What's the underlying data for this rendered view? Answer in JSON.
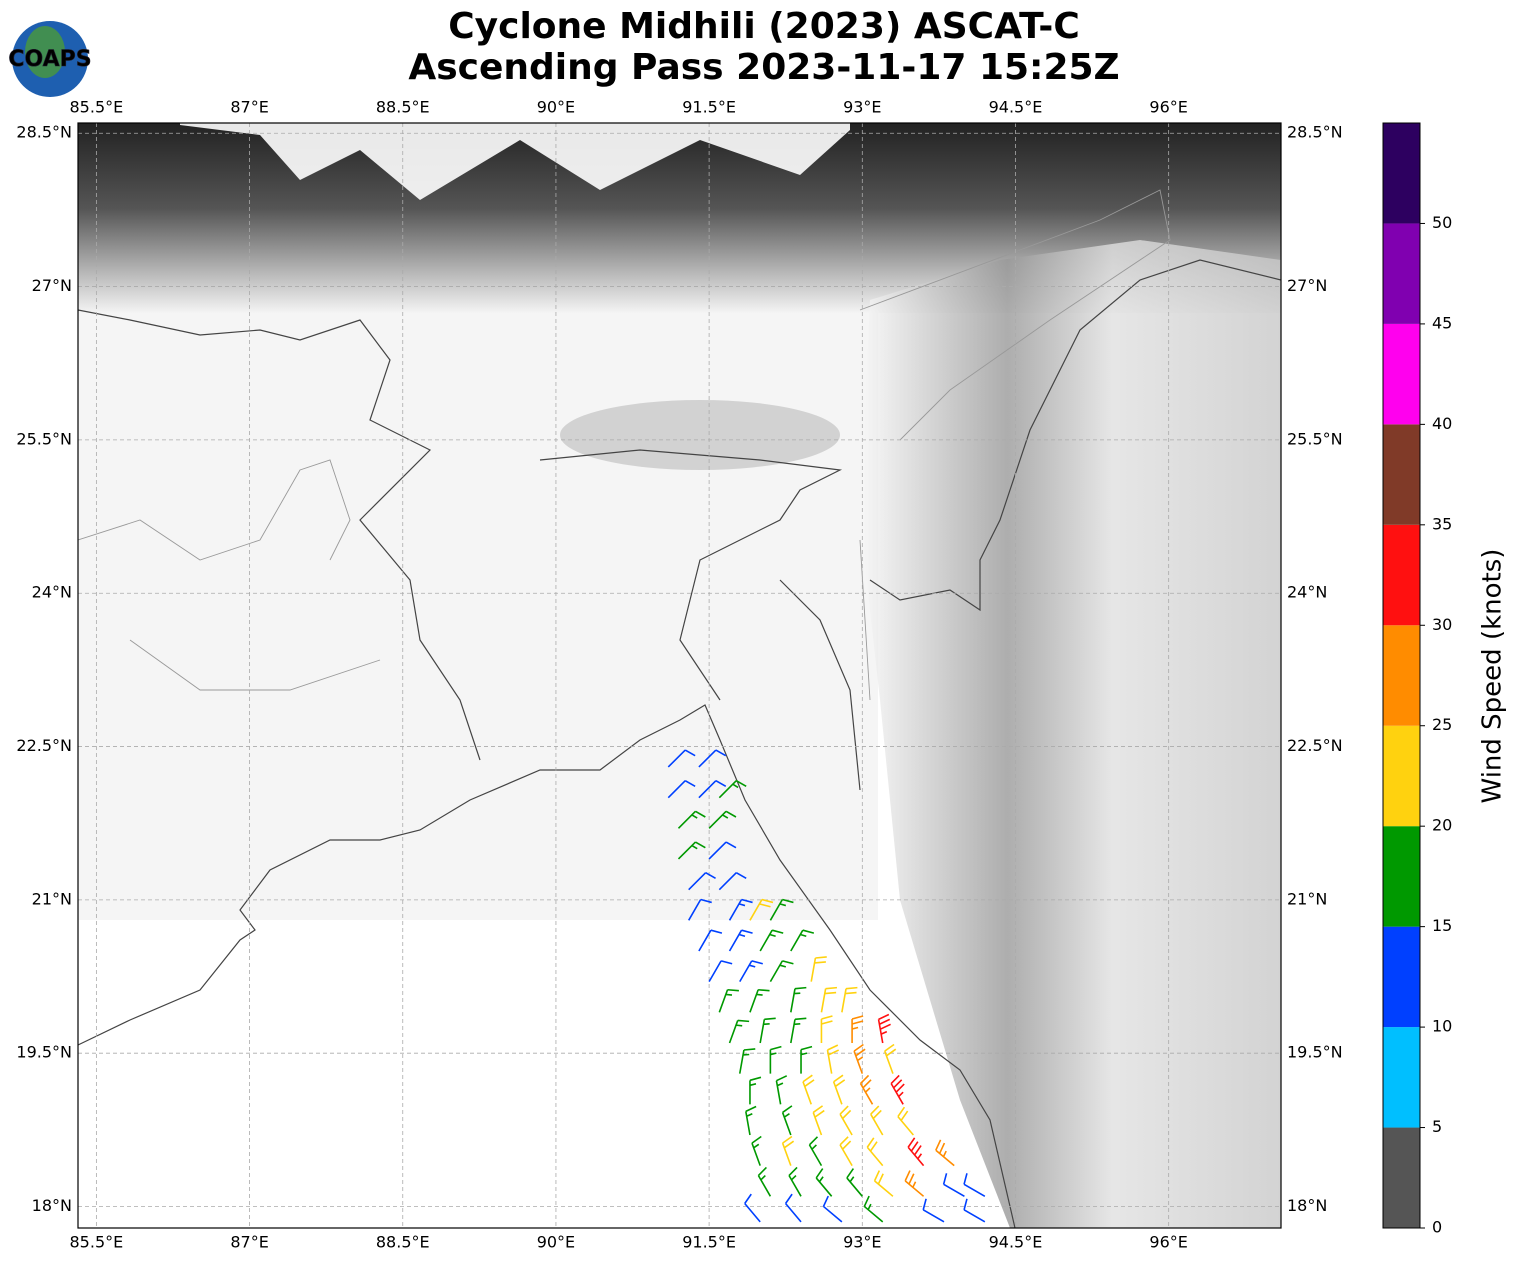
{
  "logo": "COAPS",
  "chart_data": {
    "type": "barbs",
    "title": [
      "Cyclone Midhili (2023) ASCAT-C",
      "Ascending Pass 2023-11-17 15:25Z"
    ],
    "xlim": [
      85.32,
      97.1
    ],
    "ylim": [
      17.79,
      28.6
    ],
    "xticks": [
      {
        "value": 85.5,
        "label": "85.5°E"
      },
      {
        "value": 87,
        "label": "87°E"
      },
      {
        "value": 88.5,
        "label": "88.5°E"
      },
      {
        "value": 90,
        "label": "90°E"
      },
      {
        "value": 91.5,
        "label": "91.5°E"
      },
      {
        "value": 93,
        "label": "93°E"
      },
      {
        "value": 94.5,
        "label": "94.5°E"
      },
      {
        "value": 96,
        "label": "96°E"
      }
    ],
    "yticks": [
      {
        "value": 28.5,
        "label": "28.5°N"
      },
      {
        "value": 27,
        "label": "27°N"
      },
      {
        "value": 25.5,
        "label": "25.5°N"
      },
      {
        "value": 24,
        "label": "24°N"
      },
      {
        "value": 22.5,
        "label": "22.5°N"
      },
      {
        "value": 21,
        "label": "21°N"
      },
      {
        "value": 19.5,
        "label": "19.5°N"
      },
      {
        "value": 18,
        "label": "18°N"
      }
    ],
    "grid": true,
    "colorbar": {
      "label": "Wind Speed (knots)",
      "bounds": [
        0,
        5,
        10,
        15,
        20,
        25,
        30,
        35,
        40,
        45,
        50,
        55
      ],
      "colors": [
        "#555555",
        "#00bfff",
        "#0040ff",
        "#009900",
        "#ffd20f",
        "#ff8c00",
        "#ff1010",
        "#803a28",
        "#ff00ee",
        "#8000b0",
        "#2d0060"
      ],
      "ticks": [
        0,
        5,
        10,
        15,
        20,
        25,
        30,
        35,
        40,
        45,
        50
      ]
    },
    "barbs": [
      {
        "lon": 91.1,
        "lat": 22.3,
        "speed": 12,
        "direction": 45
      },
      {
        "lon": 91.4,
        "lat": 22.3,
        "speed": 12,
        "direction": 45
      },
      {
        "lon": 91.1,
        "lat": 22.0,
        "speed": 12,
        "direction": 45
      },
      {
        "lon": 91.4,
        "lat": 22.0,
        "speed": 12,
        "direction": 45
      },
      {
        "lon": 91.6,
        "lat": 22.0,
        "speed": 17,
        "direction": 45
      },
      {
        "lon": 91.2,
        "lat": 21.7,
        "speed": 17,
        "direction": 45
      },
      {
        "lon": 91.5,
        "lat": 21.7,
        "speed": 17,
        "direction": 45
      },
      {
        "lon": 91.2,
        "lat": 21.4,
        "speed": 17,
        "direction": 45
      },
      {
        "lon": 91.5,
        "lat": 21.4,
        "speed": 12,
        "direction": 45
      },
      {
        "lon": 91.3,
        "lat": 21.1,
        "speed": 12,
        "direction": 45
      },
      {
        "lon": 91.6,
        "lat": 21.1,
        "speed": 12,
        "direction": 45
      },
      {
        "lon": 91.3,
        "lat": 20.8,
        "speed": 12,
        "direction": 30
      },
      {
        "lon": 91.7,
        "lat": 20.8,
        "speed": 13,
        "direction": 30
      },
      {
        "lon": 91.9,
        "lat": 20.8,
        "speed": 22,
        "direction": 30
      },
      {
        "lon": 92.1,
        "lat": 20.8,
        "speed": 17,
        "direction": 30
      },
      {
        "lon": 91.4,
        "lat": 20.5,
        "speed": 12,
        "direction": 30
      },
      {
        "lon": 91.7,
        "lat": 20.5,
        "speed": 13,
        "direction": 30
      },
      {
        "lon": 92.0,
        "lat": 20.5,
        "speed": 17,
        "direction": 30
      },
      {
        "lon": 92.3,
        "lat": 20.5,
        "speed": 17,
        "direction": 30
      },
      {
        "lon": 91.5,
        "lat": 20.2,
        "speed": 12,
        "direction": 30
      },
      {
        "lon": 91.8,
        "lat": 20.2,
        "speed": 13,
        "direction": 30
      },
      {
        "lon": 92.1,
        "lat": 20.2,
        "speed": 17,
        "direction": 30
      },
      {
        "lon": 92.5,
        "lat": 20.2,
        "speed": 22,
        "direction": 10
      },
      {
        "lon": 91.6,
        "lat": 19.9,
        "speed": 17,
        "direction": 20
      },
      {
        "lon": 91.9,
        "lat": 19.9,
        "speed": 17,
        "direction": 20
      },
      {
        "lon": 92.3,
        "lat": 19.9,
        "speed": 17,
        "direction": 10
      },
      {
        "lon": 92.6,
        "lat": 19.9,
        "speed": 22,
        "direction": 10
      },
      {
        "lon": 92.8,
        "lat": 19.9,
        "speed": 22,
        "direction": 10
      },
      {
        "lon": 91.7,
        "lat": 19.6,
        "speed": 17,
        "direction": 20
      },
      {
        "lon": 92.0,
        "lat": 19.6,
        "speed": 17,
        "direction": 10
      },
      {
        "lon": 92.3,
        "lat": 19.6,
        "speed": 17,
        "direction": 10
      },
      {
        "lon": 92.6,
        "lat": 19.6,
        "speed": 22,
        "direction": 0
      },
      {
        "lon": 92.9,
        "lat": 19.6,
        "speed": 27,
        "direction": 0
      },
      {
        "lon": 93.2,
        "lat": 19.6,
        "speed": 33,
        "direction": 350
      },
      {
        "lon": 91.8,
        "lat": 19.3,
        "speed": 17,
        "direction": 10
      },
      {
        "lon": 92.1,
        "lat": 19.3,
        "speed": 17,
        "direction": 0
      },
      {
        "lon": 92.4,
        "lat": 19.3,
        "speed": 17,
        "direction": 0
      },
      {
        "lon": 92.7,
        "lat": 19.3,
        "speed": 22,
        "direction": 350
      },
      {
        "lon": 93.0,
        "lat": 19.3,
        "speed": 27,
        "direction": 340
      },
      {
        "lon": 93.3,
        "lat": 19.3,
        "speed": 22,
        "direction": 340
      },
      {
        "lon": 91.9,
        "lat": 19.0,
        "speed": 17,
        "direction": 0
      },
      {
        "lon": 92.2,
        "lat": 19.0,
        "speed": 17,
        "direction": 350
      },
      {
        "lon": 92.5,
        "lat": 19.0,
        "speed": 22,
        "direction": 340
      },
      {
        "lon": 92.8,
        "lat": 19.0,
        "speed": 22,
        "direction": 340
      },
      {
        "lon": 93.1,
        "lat": 19.0,
        "speed": 27,
        "direction": 330
      },
      {
        "lon": 93.4,
        "lat": 19.0,
        "speed": 33,
        "direction": 330
      },
      {
        "lon": 91.9,
        "lat": 18.7,
        "speed": 17,
        "direction": 350
      },
      {
        "lon": 92.3,
        "lat": 18.7,
        "speed": 17,
        "direction": 340
      },
      {
        "lon": 92.6,
        "lat": 18.7,
        "speed": 22,
        "direction": 340
      },
      {
        "lon": 92.9,
        "lat": 18.7,
        "speed": 22,
        "direction": 330
      },
      {
        "lon": 93.2,
        "lat": 18.7,
        "speed": 22,
        "direction": 330
      },
      {
        "lon": 93.5,
        "lat": 18.7,
        "speed": 22,
        "direction": 320
      },
      {
        "lon": 92.0,
        "lat": 18.4,
        "speed": 17,
        "direction": 340
      },
      {
        "lon": 92.3,
        "lat": 18.4,
        "speed": 22,
        "direction": 340
      },
      {
        "lon": 92.6,
        "lat": 18.4,
        "speed": 17,
        "direction": 330
      },
      {
        "lon": 92.9,
        "lat": 18.4,
        "speed": 22,
        "direction": 330
      },
      {
        "lon": 93.2,
        "lat": 18.4,
        "speed": 22,
        "direction": 320
      },
      {
        "lon": 93.6,
        "lat": 18.4,
        "speed": 33,
        "direction": 320
      },
      {
        "lon": 93.9,
        "lat": 18.4,
        "speed": 27,
        "direction": 310
      },
      {
        "lon": 92.1,
        "lat": 18.1,
        "speed": 17,
        "direction": 330
      },
      {
        "lon": 92.4,
        "lat": 18.1,
        "speed": 17,
        "direction": 330
      },
      {
        "lon": 92.7,
        "lat": 18.1,
        "speed": 17,
        "direction": 320
      },
      {
        "lon": 93.0,
        "lat": 18.1,
        "speed": 17,
        "direction": 320
      },
      {
        "lon": 93.3,
        "lat": 18.1,
        "speed": 22,
        "direction": 310
      },
      {
        "lon": 93.6,
        "lat": 18.1,
        "speed": 27,
        "direction": 310
      },
      {
        "lon": 94.0,
        "lat": 18.1,
        "speed": 12,
        "direction": 300
      },
      {
        "lon": 94.2,
        "lat": 18.1,
        "speed": 12,
        "direction": 300
      },
      {
        "lon": 92.0,
        "lat": 17.85,
        "speed": 12,
        "direction": 320
      },
      {
        "lon": 92.4,
        "lat": 17.85,
        "speed": 12,
        "direction": 320
      },
      {
        "lon": 92.8,
        "lat": 17.85,
        "speed": 12,
        "direction": 310
      },
      {
        "lon": 93.2,
        "lat": 17.85,
        "speed": 17,
        "direction": 310
      },
      {
        "lon": 93.8,
        "lat": 17.85,
        "speed": 12,
        "direction": 300
      },
      {
        "lon": 94.2,
        "lat": 17.85,
        "speed": 12,
        "direction": 300
      }
    ]
  }
}
